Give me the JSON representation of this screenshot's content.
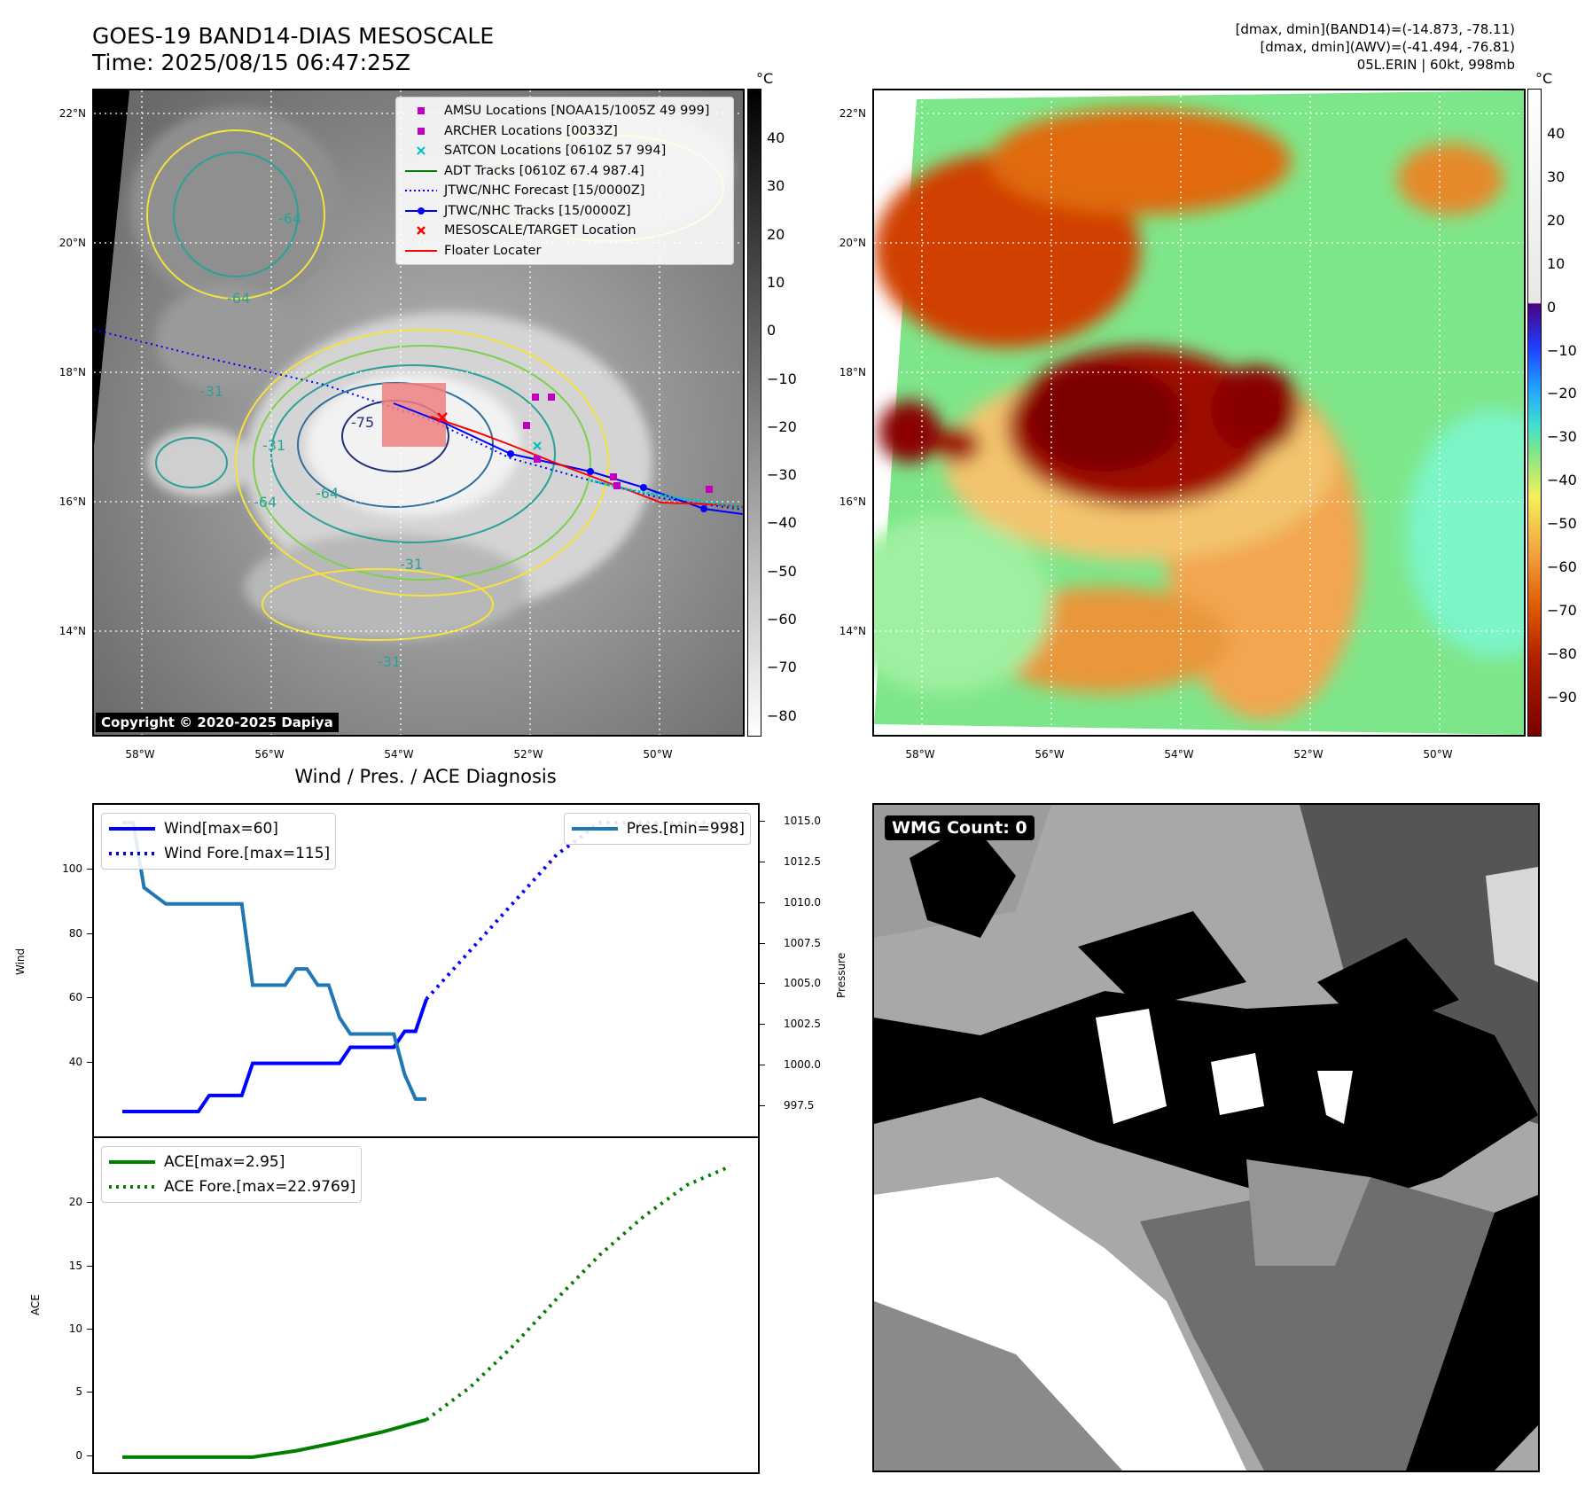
{
  "header": {
    "title_line1": "GOES-19 BAND14-DIAS MESOSCALE",
    "title_line2": "Time: 2025/08/15 06:47:25Z",
    "info_line1": "[dmax, dmin](BAND14)=(-14.873, -78.11)",
    "info_line2": "[dmax, dmin](AWV)=(-41.494, -76.81)",
    "info_line3": "05L.ERIN | 60kt, 998mb"
  },
  "map_common": {
    "lat_labels": [
      "22°N",
      "20°N",
      "18°N",
      "16°N",
      "14°N"
    ],
    "lon_labels": [
      "58°W",
      "56°W",
      "54°W",
      "52°W",
      "50°W"
    ]
  },
  "map1": {
    "unit": "°C",
    "colorbar_ticks": [
      "40",
      "30",
      "20",
      "10",
      "0",
      "−10",
      "−20",
      "−30",
      "−40",
      "−50",
      "−60",
      "−70",
      "−80"
    ],
    "copyright": "Copyright © 2020-2025 Dapiya",
    "contour_labels": [
      "-64",
      "-64",
      "-64",
      "-64",
      "-31",
      "-31",
      "-31",
      "-31",
      "-75"
    ],
    "legend": [
      {
        "label": "AMSU Locations [NOAA15/1005Z 49 999]",
        "symbol": "square",
        "color": "#bf00bf"
      },
      {
        "label": "ARCHER Locations [0033Z]",
        "symbol": "square",
        "color": "#bf00bf"
      },
      {
        "label": "SATCON Locations [0610Z 57 994]",
        "symbol": "x",
        "color": "#00bfbf"
      },
      {
        "label": "ADT Tracks [0610Z 67.4 987.4]",
        "symbol": "line",
        "color": "#008000"
      },
      {
        "label": "JTWC/NHC Forecast [15/0000Z]",
        "symbol": "dotted",
        "color": "#0000ff"
      },
      {
        "label": "JTWC/NHC Tracks [15/0000Z]",
        "symbol": "line-dot",
        "color": "#0000ff"
      },
      {
        "label": "MESOSCALE/TARGET Location",
        "symbol": "x",
        "color": "#ff0000"
      },
      {
        "label": "Floater Locater",
        "symbol": "line",
        "color": "#ff0000"
      }
    ]
  },
  "map2": {
    "unit": "°C",
    "colorbar_ticks": [
      "40",
      "30",
      "20",
      "10",
      "0",
      "−10",
      "−20",
      "−30",
      "−40",
      "−50",
      "−60",
      "−70",
      "−80",
      "−90"
    ]
  },
  "wmg": {
    "label": "WMG Count: 0"
  },
  "diag_title": "Wind / Pres. / ACE Diagnosis",
  "colors": {
    "wind": "#0000ff",
    "pressure": "#1f77b4",
    "ace": "#008000",
    "rgb_band": "#ffffff"
  },
  "chart_data": [
    {
      "type": "line",
      "title": "Wind / Pres. / ACE Diagnosis",
      "ylabel": "Wind",
      "y2label": "Pressure",
      "ylim": [
        20,
        118
      ],
      "y2lim": [
        997,
        1015.8
      ],
      "yticks": [
        40,
        60,
        80,
        100
      ],
      "y2ticks": [
        "997.5",
        "1000.0",
        "1002.5",
        "1005.0",
        "1007.5",
        "1010.0",
        "1012.5",
        "1015.0"
      ],
      "legend_left": [
        "Wind[max=60]",
        "Wind Fore.[max=115]"
      ],
      "legend_right": [
        "Pres.[min=998]"
      ],
      "series": [
        {
          "name": "Wind[max=60]",
          "style": "solid",
          "axis": "left",
          "x": [
            0,
            1,
            2,
            3,
            4,
            5,
            6,
            7,
            8,
            9,
            10,
            11,
            12,
            13,
            14,
            15,
            16,
            17,
            18,
            19,
            20,
            21,
            22,
            23,
            24,
            25,
            26,
            27,
            28
          ],
          "values": [
            25,
            25,
            25,
            25,
            25,
            25,
            25,
            25,
            30,
            30,
            30,
            30,
            40,
            40,
            40,
            40,
            40,
            40,
            40,
            40,
            40,
            45,
            45,
            45,
            45,
            45,
            50,
            50,
            60
          ]
        },
        {
          "name": "Wind Fore.[max=115]",
          "style": "dotted",
          "axis": "left",
          "x": [
            28,
            32,
            36,
            40,
            44,
            48,
            52,
            56
          ],
          "values": [
            60,
            75,
            90,
            105,
            115,
            115,
            115,
            115
          ]
        },
        {
          "name": "Pres.[min=998]",
          "style": "solid",
          "axis": "right",
          "x": [
            0,
            1,
            2,
            3,
            4,
            5,
            6,
            7,
            8,
            9,
            10,
            11,
            12,
            13,
            14,
            15,
            16,
            17,
            18,
            19,
            20,
            21,
            22,
            23,
            24,
            25,
            26,
            27,
            28
          ],
          "values": [
            1015,
            1015,
            1011,
            1010.5,
            1010,
            1010,
            1010,
            1010,
            1010,
            1010,
            1010,
            1010,
            1005,
            1005,
            1005,
            1005,
            1006,
            1006,
            1005,
            1005,
            1003,
            1002,
            1002,
            1002,
            1002,
            1002,
            999.5,
            998,
            998
          ]
        }
      ]
    },
    {
      "type": "line",
      "ylabel": "ACE",
      "ylim": [
        -1.2,
        23.8
      ],
      "yticks": [
        0,
        5,
        10,
        15,
        20
      ],
      "legend": [
        "ACE[max=2.95]",
        "ACE Fore.[max=22.9769]"
      ],
      "series": [
        {
          "name": "ACE[max=2.95]",
          "style": "solid",
          "x": [
            0,
            4,
            8,
            12,
            16,
            20,
            24,
            28
          ],
          "values": [
            0,
            0,
            0,
            0,
            0.5,
            1.2,
            2.0,
            2.95
          ]
        },
        {
          "name": "ACE Fore.[max=22.9769]",
          "style": "dotted",
          "x": [
            28,
            32,
            36,
            40,
            44,
            48,
            52,
            56
          ],
          "values": [
            2.95,
            5.5,
            8.8,
            12.5,
            16.0,
            19.0,
            21.5,
            22.9769
          ]
        }
      ]
    }
  ]
}
